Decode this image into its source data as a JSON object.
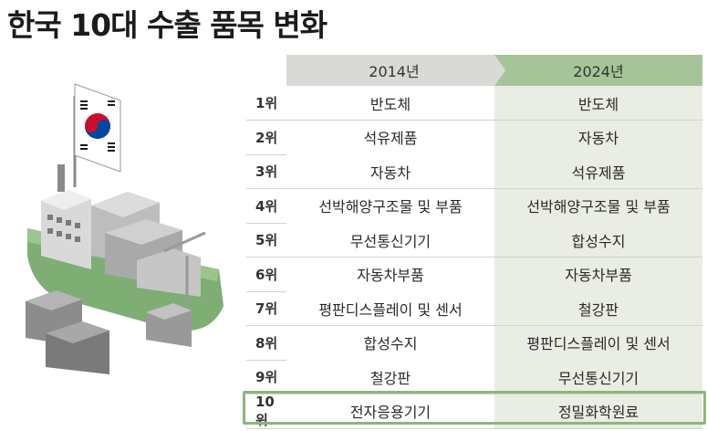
{
  "title": "한국 10대 수출 품목 변화",
  "columns": {
    "col_2014": "2014년",
    "col_2024": "2024년"
  },
  "rows": [
    {
      "rank": "1위",
      "y2014": "반도체",
      "y2024": "반도체"
    },
    {
      "rank": "2위",
      "y2014": "석유제품",
      "y2024": "자동차"
    },
    {
      "rank": "3위",
      "y2014": "자동차",
      "y2024": "석유제품"
    },
    {
      "rank": "4위",
      "y2014": "선박해양구조물 및 부품",
      "y2024": "선박해양구조물 및 부품"
    },
    {
      "rank": "5위",
      "y2014": "무선통신기기",
      "y2024": "합성수지"
    },
    {
      "rank": "6위",
      "y2014": "자동차부품",
      "y2024": "자동차부품"
    },
    {
      "rank": "7위",
      "y2014": "평판디스플레이 및 센서",
      "y2024": "철강판"
    },
    {
      "rank": "8위",
      "y2014": "합성수지",
      "y2024": "평판디스플레이 및 센서"
    },
    {
      "rank": "9위",
      "y2014": "철강판",
      "y2024": "무선통신기기"
    },
    {
      "rank": "10위",
      "y2014": "전자응용기기",
      "y2024": "정밀화학원료"
    }
  ],
  "colors": {
    "accent_green": "#8db67d",
    "header_2024": "#a5c497",
    "header_2014": "#d9d9d5",
    "col_2024_bg": "#e9ede3"
  }
}
